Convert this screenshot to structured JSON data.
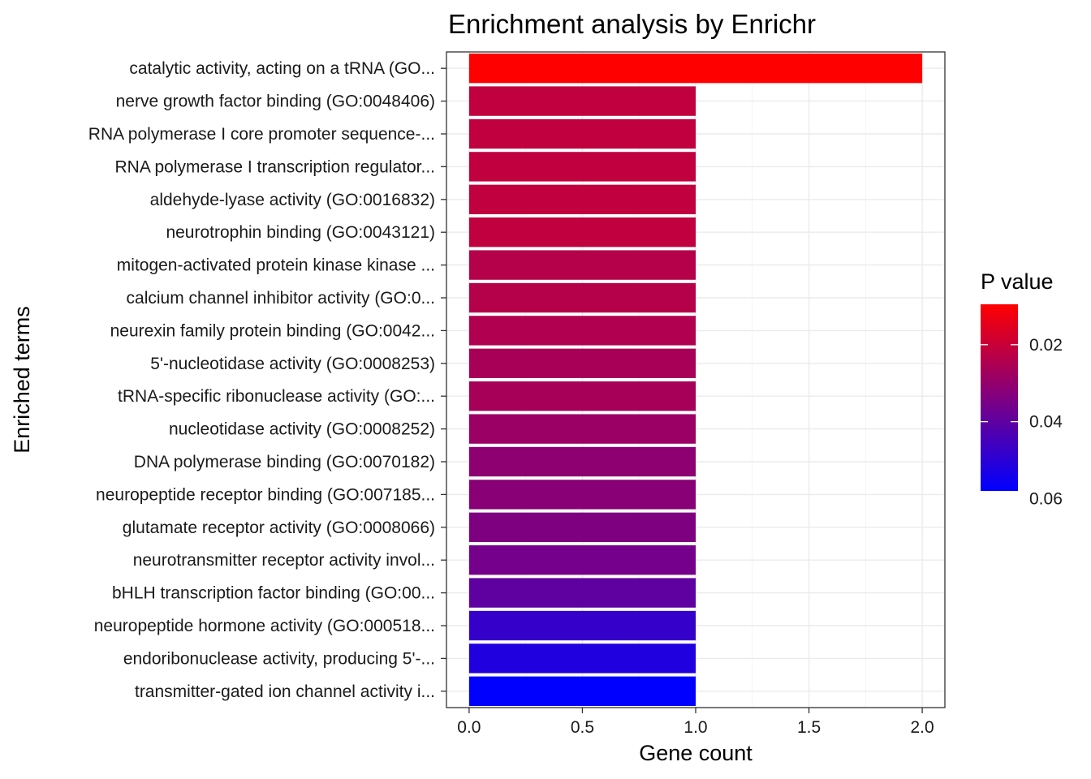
{
  "chart_data": {
    "type": "bar",
    "orientation": "horizontal",
    "title": "Enrichment analysis by Enrichr",
    "xlabel": "Gene count",
    "ylabel": "Enriched terms",
    "xlim": [
      -0.1,
      2.1
    ],
    "xticks": [
      0,
      0.5,
      1,
      1.5,
      2
    ],
    "xtick_labels": [
      "0.0",
      "0.5",
      "1.0",
      "1.5",
      "2.0"
    ],
    "categories": [
      "catalytic activity, acting on a tRNA (GO...",
      "nerve growth factor binding (GO:0048406)",
      "RNA polymerase I core promoter sequence-...",
      "RNA polymerase I transcription regulator...",
      "aldehyde-lyase activity (GO:0016832)",
      "neurotrophin binding (GO:0043121)",
      "mitogen-activated protein kinase kinase ...",
      "calcium channel inhibitor activity (GO:0...",
      "neurexin family protein binding (GO:0042...",
      "5'-nucleotidase activity (GO:0008253)",
      "tRNA-specific ribonuclease activity (GO:...",
      "nucleotidase activity (GO:0008252)",
      "DNA polymerase binding (GO:0070182)",
      "neuropeptide receptor binding (GO:007185...",
      "glutamate receptor activity (GO:0008066)",
      "neurotransmitter receptor activity invol...",
      "bHLH transcription factor binding (GO:00...",
      "neuropeptide hormone activity (GO:000518...",
      "endoribonuclease activity, producing 5'-...",
      "transmitter-gated ion channel activity i..."
    ],
    "values": [
      2,
      1,
      1,
      1,
      1,
      1,
      1,
      1,
      1,
      1,
      1,
      1,
      1,
      1,
      1,
      1,
      1,
      1,
      1,
      1
    ],
    "p_values": [
      0.0095,
      0.0215,
      0.0215,
      0.0215,
      0.0215,
      0.0215,
      0.0235,
      0.0235,
      0.0245,
      0.026,
      0.0265,
      0.0285,
      0.031,
      0.032,
      0.034,
      0.036,
      0.04,
      0.048,
      0.052,
      0.058
    ],
    "color_scale": {
      "title": "P value",
      "low_color": "#ff0000",
      "high_color": "#0000ff",
      "range": [
        0.0095,
        0.058
      ],
      "ticks": [
        0.02,
        0.04,
        0.06
      ],
      "tick_labels": [
        "0.02",
        "0.04",
        "0.06"
      ]
    },
    "grid": true,
    "legend": "right"
  }
}
